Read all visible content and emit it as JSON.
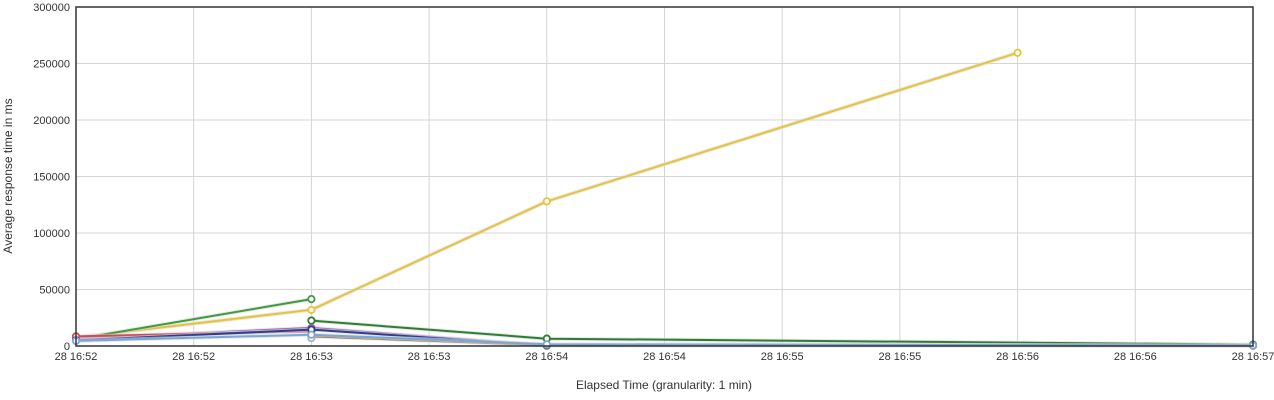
{
  "chart_data": {
    "type": "line",
    "xlabel": "Elapsed Time (granularity: 1 min)",
    "ylabel": "Average response time in ms",
    "ylim": [
      0,
      300000
    ],
    "y_ticks": [
      0,
      50000,
      100000,
      150000,
      200000,
      250000,
      300000
    ],
    "y_tick_labels": [
      "0",
      "50000",
      "100000",
      "150000",
      "200000",
      "250000",
      "300000"
    ],
    "x_tick_labels": [
      "28 16:52",
      "28 16:52",
      "28 16:53",
      "28 16:53",
      "28 16:54",
      "28 16:54",
      "28 16:55",
      "28 16:55",
      "28 16:56",
      "28 16:56",
      "28 16:57"
    ],
    "x_range_seconds": [
      0,
      300
    ],
    "grid": true,
    "legend": "none",
    "series": [
      {
        "color": "#e8c33a",
        "points": [
          [
            0,
            7500
          ],
          [
            60,
            32000
          ],
          [
            120,
            128000
          ],
          [
            240,
            259500
          ]
        ]
      },
      {
        "color": "#3e9b3e",
        "points": [
          [
            0,
            6000
          ],
          [
            60,
            41500
          ]
        ]
      },
      {
        "color": "#2e7d32",
        "points": [
          [
            60,
            22500
          ],
          [
            120,
            6500
          ],
          [
            300,
            1200
          ]
        ]
      },
      {
        "color": "#9b5fb4",
        "points": [
          [
            0,
            6500
          ],
          [
            60,
            16000
          ],
          [
            120,
            500
          ],
          [
            300,
            200
          ]
        ]
      },
      {
        "color": "#d04a5a",
        "points": [
          [
            0,
            8500
          ],
          [
            60,
            13000
          ]
        ]
      },
      {
        "color": "#2c3e8c",
        "points": [
          [
            0,
            5000
          ],
          [
            60,
            14500
          ],
          [
            120,
            300
          ]
        ]
      },
      {
        "color": "#8b6b3e",
        "points": [
          [
            60,
            8500
          ],
          [
            120,
            800
          ]
        ]
      },
      {
        "color": "#b0b0b0",
        "points": [
          [
            60,
            7000
          ]
        ]
      },
      {
        "color": "#7aa7d6",
        "points": [
          [
            0,
            4500
          ],
          [
            60,
            10000
          ],
          [
            120,
            1500
          ],
          [
            300,
            500
          ]
        ]
      }
    ]
  }
}
